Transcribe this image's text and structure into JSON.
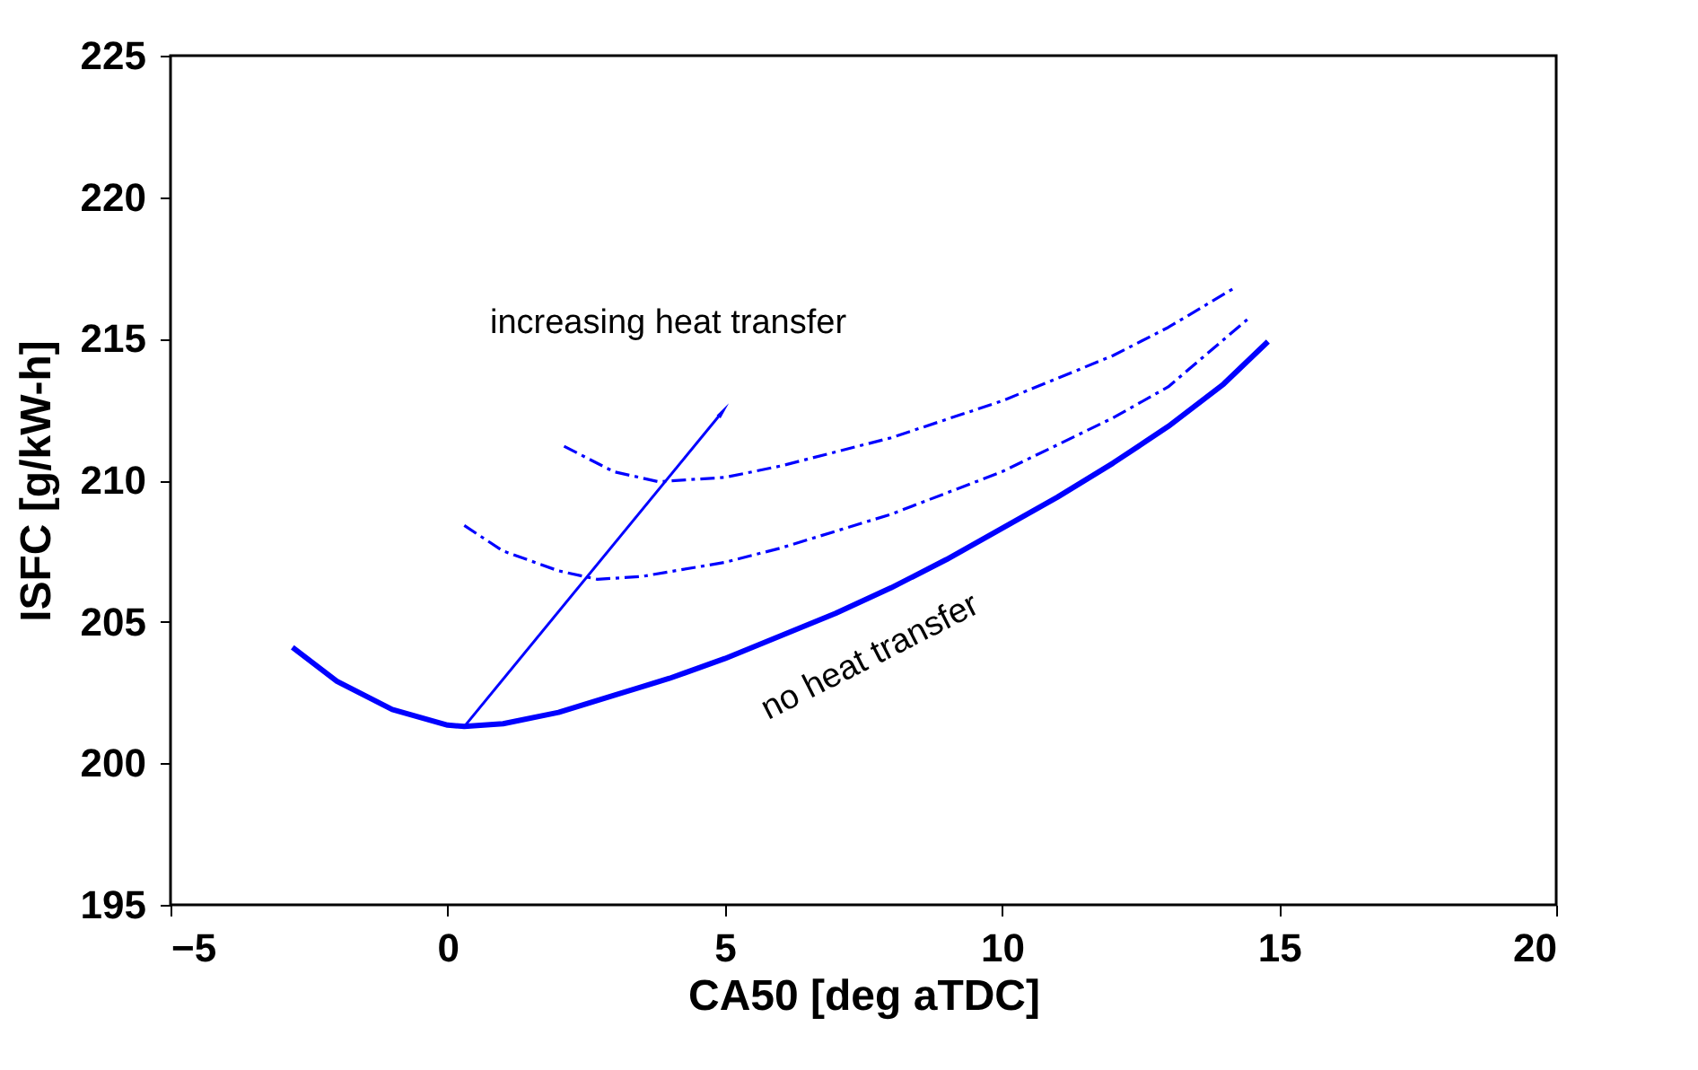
{
  "chart_data": {
    "type": "line",
    "xlabel": "CA50 [deg aTDC]",
    "ylabel": "ISFC [g/kW-h]",
    "xlim": [
      -5,
      20
    ],
    "xticks": [
      -5,
      0,
      5,
      10,
      15,
      20
    ],
    "ylim": [
      195,
      225
    ],
    "yticks": [
      195,
      200,
      205,
      210,
      215,
      220,
      225
    ],
    "grid": false,
    "marker": "none",
    "series": [
      {
        "color": "#0000ff",
        "line_style": "solid",
        "x": [
          -2.8,
          -2,
          -1,
          0,
          0.3,
          1,
          2,
          3,
          4,
          5,
          6,
          7,
          8,
          9,
          10,
          11,
          12,
          13,
          14,
          14.8
        ],
        "values": [
          204.1,
          202.9,
          201.9,
          201.35,
          201.3,
          201.4,
          201.8,
          202.4,
          203.0,
          203.7,
          204.5,
          205.3,
          206.2,
          207.2,
          208.3,
          209.4,
          210.6,
          211.9,
          213.4,
          214.9
        ]
      },
      {
        "color": "#0000ff",
        "line_style": "dashed",
        "x": [
          0.3,
          1,
          2,
          2.7,
          3.5,
          5,
          6,
          8,
          10,
          12,
          13,
          14.5
        ],
        "values": [
          208.4,
          207.5,
          206.8,
          206.5,
          206.6,
          207.1,
          207.6,
          208.8,
          210.3,
          212.2,
          213.3,
          215.8
        ]
      },
      {
        "color": "#0000ff",
        "line_style": "dashed",
        "x": [
          2.1,
          3,
          3.8,
          5,
          6,
          8,
          10,
          12,
          13,
          14.2
        ],
        "values": [
          211.2,
          210.3,
          209.95,
          210.1,
          210.5,
          211.5,
          212.8,
          214.4,
          215.4,
          216.8
        ]
      }
    ],
    "annotations": [
      {
        "text": "increasing heat transfer",
        "x": 4.95,
        "y": 212.4
      },
      {
        "text": "no heat transfer",
        "x": 7,
        "y": 205.3
      }
    ]
  }
}
